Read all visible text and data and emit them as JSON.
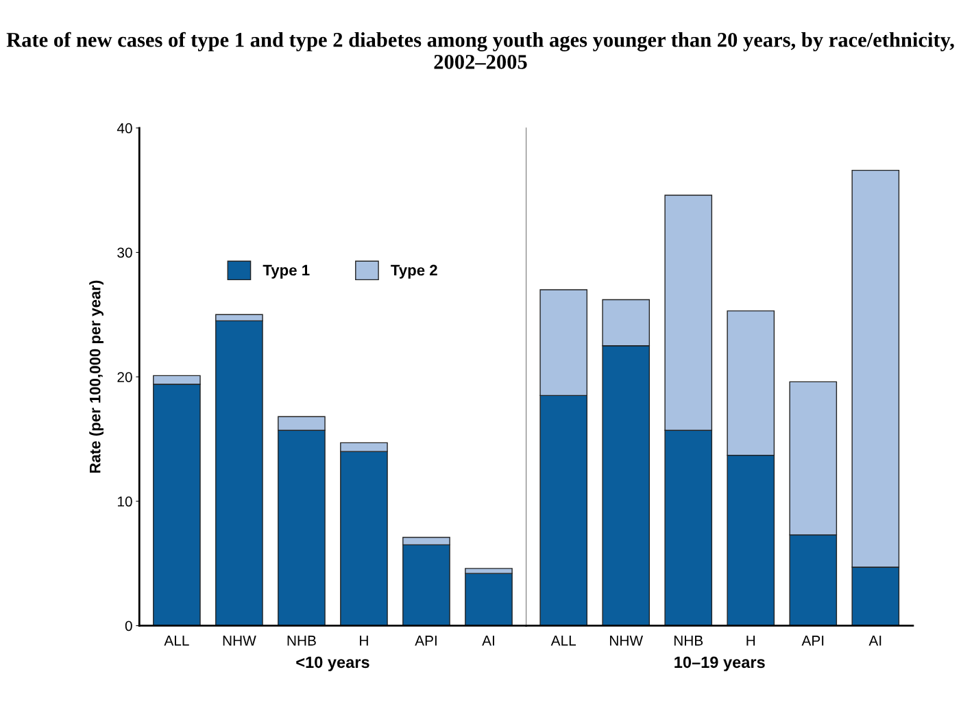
{
  "chart_data": [
    {
      "type": "bar",
      "stacked": true,
      "title": "Rate of new cases of type 1 and type 2 diabetes among youth ages younger than 20 years, by race/ethnicity, 2002–2005",
      "categories": [
        "ALL",
        "NHW",
        "NHB",
        "H",
        "API",
        "AI"
      ],
      "xlabel": "<10 years",
      "ylabel": "Rate (per 100,000 per year)",
      "ylim": [
        0,
        40
      ],
      "yticks": [
        0,
        10,
        20,
        30,
        40
      ],
      "legend": "top",
      "grid": false,
      "series": [
        {
          "name": "Type 1",
          "color": "#0b5e9c",
          "values": [
            19.4,
            24.5,
            15.7,
            14.0,
            6.5,
            4.2
          ]
        },
        {
          "name": "Type 2",
          "color": "#a9c1e1",
          "values": [
            0.7,
            0.5,
            1.1,
            0.7,
            0.6,
            0.4
          ]
        }
      ]
    },
    {
      "type": "bar",
      "stacked": true,
      "categories": [
        "ALL",
        "NHW",
        "NHB",
        "H",
        "API",
        "AI"
      ],
      "xlabel": "10–19 years",
      "ylim": [
        0,
        40
      ],
      "yticks": [
        0,
        10,
        20,
        30,
        40
      ],
      "tick_labels": "x",
      "grid": false,
      "series": [
        {
          "color": "#0b5e9c",
          "values": [
            18.5,
            22.5,
            15.7,
            13.7,
            7.3,
            4.7
          ]
        },
        {
          "color": "#a9c1e1",
          "values": [
            8.5,
            3.7,
            18.9,
            11.6,
            12.3,
            31.9
          ]
        }
      ]
    }
  ]
}
